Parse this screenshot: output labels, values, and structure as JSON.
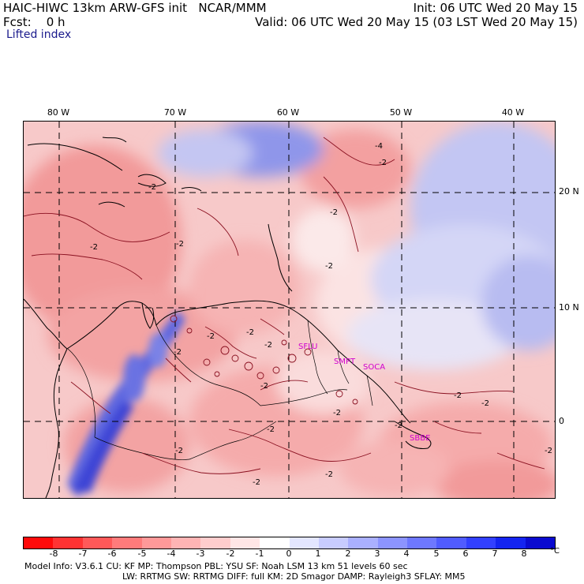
{
  "header": {
    "model_title": "HAIC-HIWC 13km ARW-GFS init",
    "org": "NCAR/MMM",
    "init": "Init: 06 UTC Wed 20 May 15",
    "fcst_label": "Fcst:",
    "fcst_value": "0 h",
    "valid": "Valid: 06 UTC Wed 20 May 15 (03 LST Wed 20 May 15)",
    "field": "Lifted index"
  },
  "map": {
    "longitude_labels": [
      "80 W",
      "70 W",
      "60 W",
      "50 W",
      "40 W"
    ],
    "latitude_labels": [
      "20 N",
      "10 N",
      "0"
    ],
    "contour_labels": [
      "-2",
      "-2",
      "-2",
      "-2",
      "-2",
      "-2",
      "-2",
      "-2",
      "-2",
      "-2",
      "-2",
      "-2",
      "-2",
      "-2",
      "-2",
      "-2",
      "-2",
      "-2",
      "-2",
      "-4",
      "-2"
    ],
    "stations": [
      "SFLU",
      "SMPT",
      "SOCA",
      "SBBE"
    ]
  },
  "colorbar": {
    "ticks": [
      "-8",
      "-7",
      "-6",
      "-5",
      "-4",
      "-3",
      "-2",
      "-1",
      "0",
      "1",
      "2",
      "3",
      "4",
      "5",
      "6",
      "7",
      "8"
    ],
    "unit": "°C",
    "colors": [
      "#ff0a0a",
      "#ff3333",
      "#ff5959",
      "#ff7b7b",
      "#ff9999",
      "#ffb4b4",
      "#ffcdcd",
      "#ffe6e6",
      "#ffffff",
      "#e3e6ff",
      "#c8ccff",
      "#aab0ff",
      "#8c94ff",
      "#6e78ff",
      "#505cff",
      "#3240ff",
      "#1424f0",
      "#0a0ad0"
    ]
  },
  "model_info": {
    "line1": "Model Info: V3.6.1    CU: KF      MP: Thompson     PBL: YSU      SF: Noah LSM     13 km    51 levels   60 sec",
    "line2": "LW: RRTMG     SW: RRTMG   DIFF: full    KM: 2D Smagor  DAMP: Rayleigh3   SFLAY: MM5"
  }
}
